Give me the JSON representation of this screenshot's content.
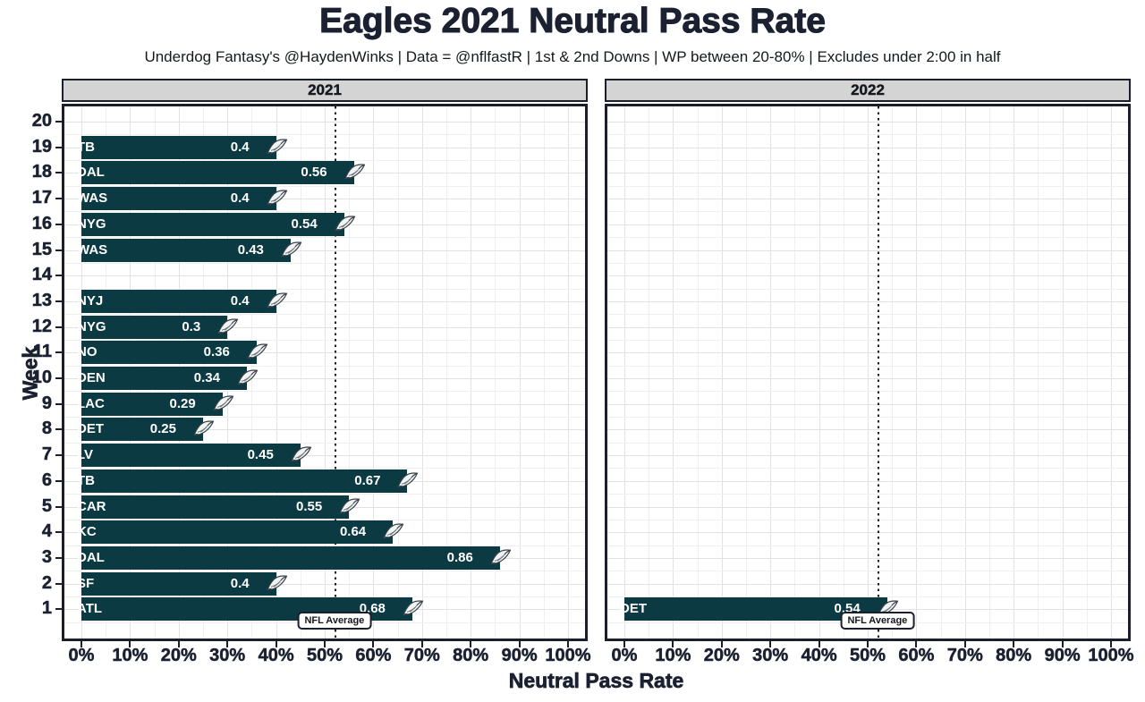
{
  "chart_data": {
    "type": "bar",
    "orientation": "horizontal",
    "title": "Eagles 2021 Neutral Pass Rate",
    "subtitle": "Underdog Fantasy's @HaydenWinks | Data = @nflfastR | 1st & 2nd Downs | WP between 20-80% | Excludes under 2:00 in half",
    "xlabel": "Neutral Pass Rate",
    "ylabel": "Week",
    "xlim": [
      0,
      1.05
    ],
    "ylim": [
      1,
      20
    ],
    "x_tick_labels": [
      "0%",
      "10%",
      "20%",
      "30%",
      "40%",
      "50%",
      "60%",
      "70%",
      "80%",
      "90%",
      "100%"
    ],
    "y_tick_labels": [
      "20",
      "19",
      "18",
      "17",
      "16",
      "15",
      "14",
      "13",
      "12",
      "11",
      "10",
      "9",
      "8",
      "7",
      "6",
      "5",
      "4",
      "3",
      "2",
      "1"
    ],
    "grid": "on",
    "reference_line": {
      "label": "NFL Average",
      "value": 0.52,
      "style": "dotted"
    },
    "panels": [
      {
        "label": "2021",
        "bars": [
          {
            "week": 19,
            "team": "TB",
            "value": 0.4,
            "value_label": "0.4"
          },
          {
            "week": 18,
            "team": "DAL",
            "value": 0.56,
            "value_label": "0.56"
          },
          {
            "week": 17,
            "team": "WAS",
            "value": 0.4,
            "value_label": "0.4"
          },
          {
            "week": 16,
            "team": "NYG",
            "value": 0.54,
            "value_label": "0.54"
          },
          {
            "week": 15,
            "team": "WAS",
            "value": 0.43,
            "value_label": "0.43"
          },
          {
            "week": 13,
            "team": "NYJ",
            "value": 0.4,
            "value_label": "0.4"
          },
          {
            "week": 12,
            "team": "NYG",
            "value": 0.3,
            "value_label": "0.3"
          },
          {
            "week": 11,
            "team": "NO",
            "value": 0.36,
            "value_label": "0.36"
          },
          {
            "week": 10,
            "team": "DEN",
            "value": 0.34,
            "value_label": "0.34"
          },
          {
            "week": 9,
            "team": "LAC",
            "value": 0.29,
            "value_label": "0.29"
          },
          {
            "week": 8,
            "team": "DET",
            "value": 0.25,
            "value_label": "0.25"
          },
          {
            "week": 7,
            "team": "LV",
            "value": 0.45,
            "value_label": "0.45"
          },
          {
            "week": 6,
            "team": "TB",
            "value": 0.67,
            "value_label": "0.67"
          },
          {
            "week": 5,
            "team": "CAR",
            "value": 0.55,
            "value_label": "0.55"
          },
          {
            "week": 4,
            "team": "KC",
            "value": 0.64,
            "value_label": "0.64"
          },
          {
            "week": 3,
            "team": "DAL",
            "value": 0.86,
            "value_label": "0.86"
          },
          {
            "week": 2,
            "team": "SF",
            "value": 0.4,
            "value_label": "0.4"
          },
          {
            "week": 1,
            "team": "ATL",
            "value": 0.68,
            "value_label": "0.68"
          }
        ]
      },
      {
        "label": "2022",
        "bars": [
          {
            "week": 1,
            "team": "DET",
            "value": 0.54,
            "value_label": "0.54"
          }
        ]
      }
    ]
  },
  "colors": {
    "bar_fill": "#0c3a43",
    "panel_border": "#1a1f2b",
    "strip_background": "#d4d4d4",
    "grid_major": "#e2e2e2",
    "grid_minor": "#efefef",
    "text_dark": "#1b2130",
    "bar_label_text": "#ffffff",
    "reference_line_color": "#1a1a1a"
  },
  "icons": {
    "eagles_logo": "eagles-logo-icon"
  }
}
